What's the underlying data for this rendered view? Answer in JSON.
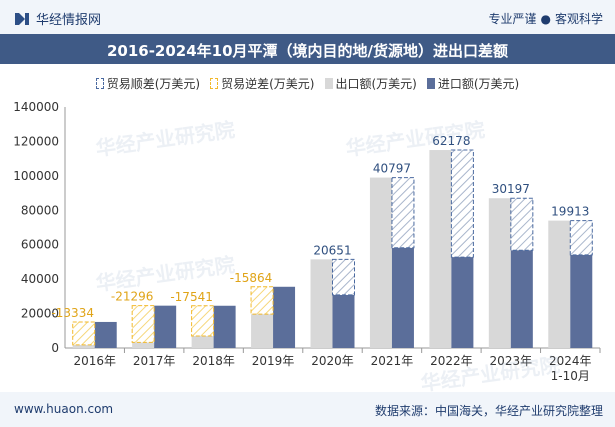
{
  "header": {
    "brand": "华经情报网",
    "tagline_left": "专业严谨",
    "tagline_sep": "●",
    "tagline_right": "客观科学"
  },
  "footer": {
    "url": "www.huaon.com",
    "source": "数据来源：中国海关，华经产业研究院整理"
  },
  "watermark": "华经产业研究院",
  "colors": {
    "export": "#d8d8d8",
    "import": "#5b6e9a",
    "surplus_border": "#4b6aa0",
    "deficit_border": "#f2b92c",
    "title_bg": "#3f5a86"
  },
  "chart_data": {
    "type": "bar",
    "title": "2016-2024年10月平潭（境内目的地/货源地）进出口差额",
    "categories": [
      "2016年",
      "2017年",
      "2018年",
      "2019年",
      "2020年",
      "2021年",
      "2022年",
      "2023年",
      "2024年\n1-10月"
    ],
    "legend": [
      {
        "key": "surplus",
        "label": "贸易顺差(万美元)"
      },
      {
        "key": "deficit",
        "label": "贸易逆差(万美元)"
      },
      {
        "key": "export",
        "label": "出口额(万美元)"
      },
      {
        "key": "import",
        "label": "进口额(万美元)"
      }
    ],
    "series": [
      {
        "name": "出口额(万美元)",
        "key": "export",
        "values": [
          1800,
          3300,
          7000,
          19700,
          51500,
          99000,
          115000,
          87000,
          74000
        ]
      },
      {
        "name": "进口额(万美元)",
        "key": "import",
        "values": [
          15134,
          24596,
          24541,
          35564,
          30849,
          58203,
          52822,
          56803,
          54087
        ]
      }
    ],
    "balance": [
      -13334,
      -21296,
      -17541,
      -15864,
      20651,
      40797,
      62178,
      30197,
      19913
    ],
    "ylim": [
      0,
      140000
    ],
    "yticks": [
      0,
      20000,
      40000,
      60000,
      80000,
      100000,
      120000,
      140000
    ],
    "legend_position": "top"
  }
}
